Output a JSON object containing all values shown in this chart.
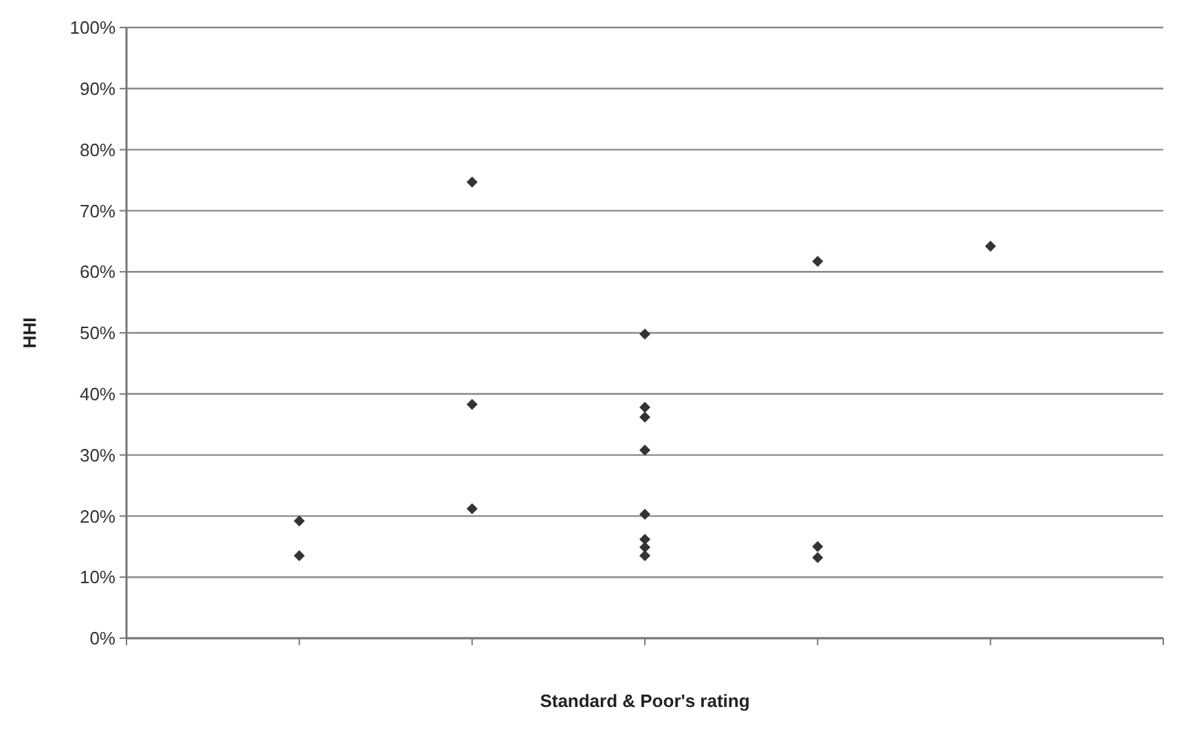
{
  "chart_data": {
    "type": "scatter",
    "xlabel": "Standard & Poor's rating",
    "ylabel": "HHI",
    "categories": [
      null,
      null,
      null,
      null,
      null
    ],
    "series": [
      {
        "color": "#333333",
        "values": [
          19.2,
          74.7,
          49.8,
          61.7,
          64.2
        ]
      },
      {
        "color": "#333333",
        "values": [
          13.5,
          38.3,
          37.8,
          15.0,
          null
        ]
      },
      {
        "color": "#333333",
        "values": [
          null,
          21.2,
          36.2,
          13.2,
          null
        ]
      },
      {
        "color": "#333333",
        "values": [
          null,
          null,
          30.8,
          null,
          null
        ]
      },
      {
        "color": "#333333",
        "values": [
          null,
          null,
          20.3,
          null,
          null
        ]
      },
      {
        "color": "#333333",
        "values": [
          null,
          null,
          16.2,
          null,
          null
        ]
      },
      {
        "color": "#333333",
        "values": [
          null,
          null,
          14.9,
          null,
          null
        ]
      },
      {
        "color": "#333333",
        "values": [
          null,
          null,
          13.5,
          null,
          null
        ]
      }
    ],
    "ylim": [
      0,
      100
    ],
    "yticks": [
      {
        "value": 0,
        "label": "0%"
      },
      {
        "value": 10,
        "label": "10%"
      },
      {
        "value": 20,
        "label": "20%"
      },
      {
        "value": 30,
        "label": "30%"
      },
      {
        "value": 40,
        "label": "40%"
      },
      {
        "value": 50,
        "label": "50%"
      },
      {
        "value": 60,
        "label": "60%"
      },
      {
        "value": 70,
        "label": "70%"
      },
      {
        "value": 80,
        "label": "80%"
      },
      {
        "value": 90,
        "label": "90%"
      },
      {
        "value": 100,
        "label": "100%"
      }
    ],
    "grid": "y",
    "marker": "diamond",
    "tick_labels": "y"
  }
}
